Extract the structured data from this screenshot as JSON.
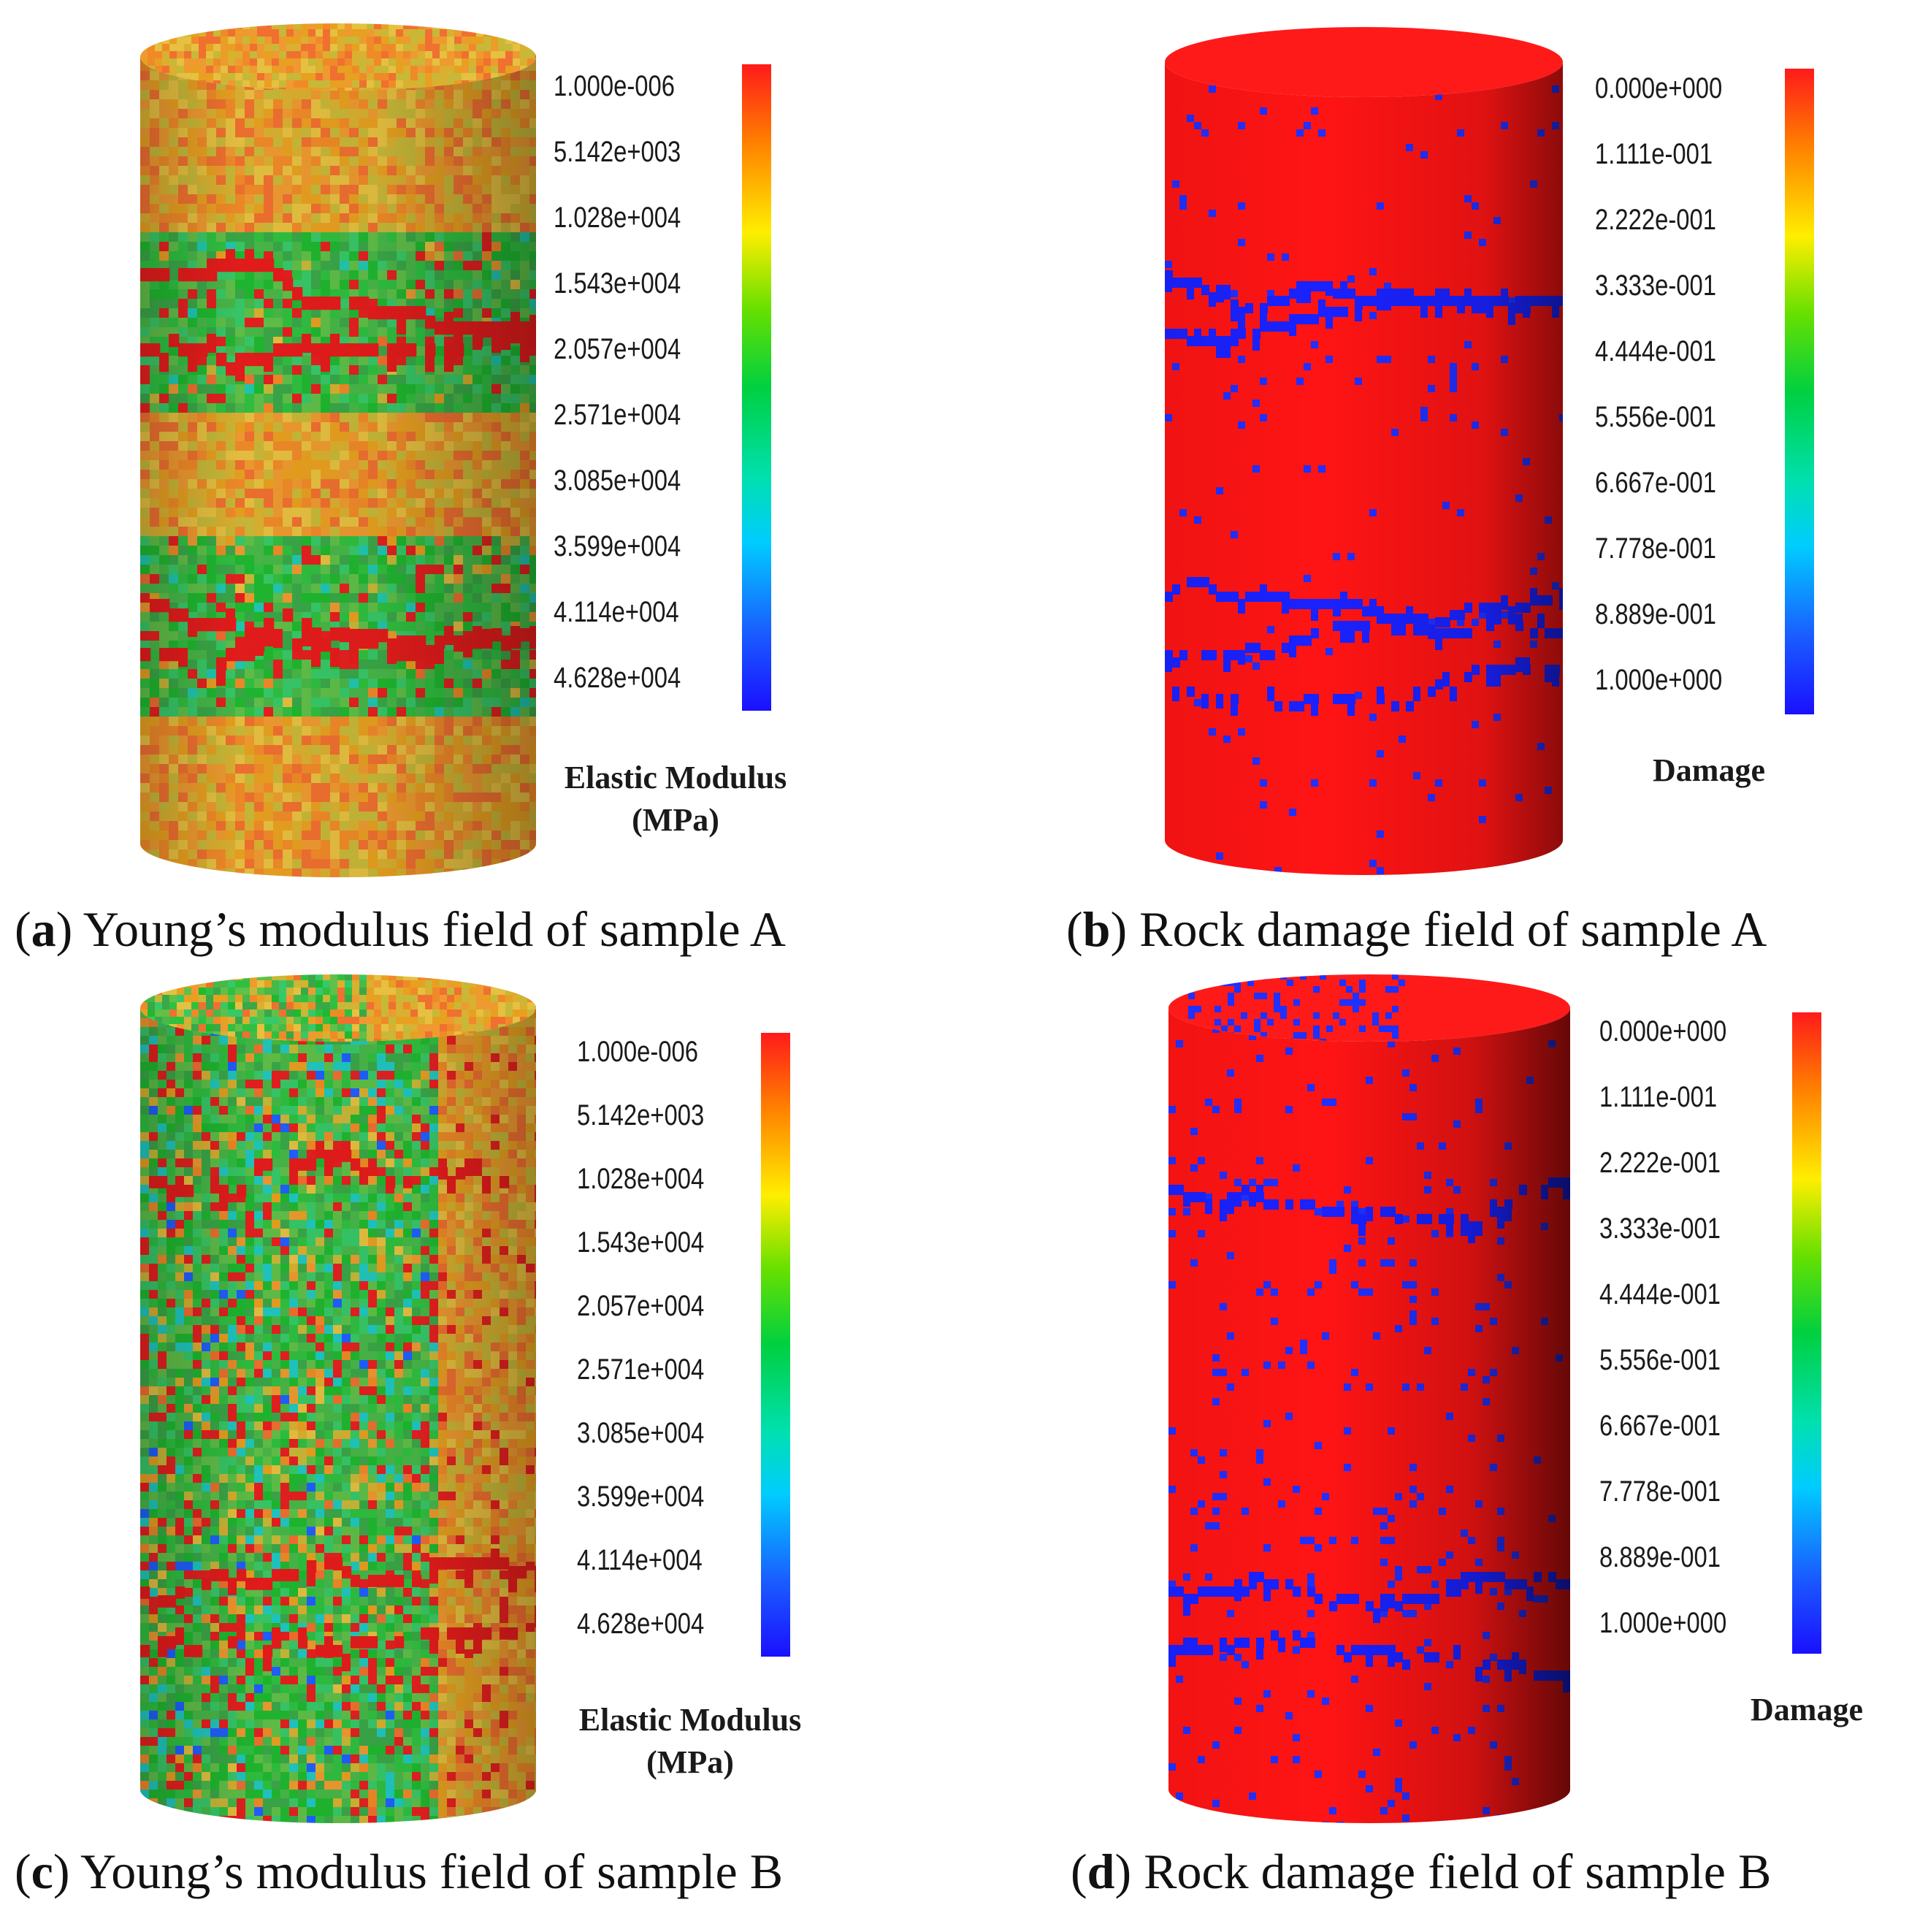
{
  "panels": {
    "a": {
      "letter": "a",
      "caption": "Young’s modulus field of sample A",
      "colorbar_title": "Elastic Modulus",
      "colorbar_unit": "(MPa)",
      "ticks": [
        "1.000e-006",
        "5.142e+003",
        "1.028e+004",
        "1.543e+004",
        "2.057e+004",
        "2.571e+004",
        "3.085e+004",
        "3.599e+004",
        "4.114e+004",
        "4.628e+004"
      ]
    },
    "b": {
      "letter": "b",
      "caption": "Rock damage field of sample A",
      "colorbar_title": "Damage",
      "ticks": [
        "0.000e+000",
        "1.111e-001",
        "2.222e-001",
        "3.333e-001",
        "4.444e-001",
        "5.556e-001",
        "6.667e-001",
        "7.778e-001",
        "8.889e-001",
        "1.000e+000"
      ]
    },
    "c": {
      "letter": "c",
      "caption": "Young’s modulus field of sample B",
      "colorbar_title": "Elastic Modulus",
      "colorbar_unit": "(MPa)",
      "ticks": [
        "1.000e-006",
        "5.142e+003",
        "1.028e+004",
        "1.543e+004",
        "2.057e+004",
        "2.571e+004",
        "3.085e+004",
        "3.599e+004",
        "4.114e+004",
        "4.628e+004"
      ]
    },
    "d": {
      "letter": "d",
      "caption": "Rock damage field of sample B",
      "colorbar_title": "Damage",
      "ticks": [
        "0.000e+000",
        "1.111e-001",
        "2.222e-001",
        "3.333e-001",
        "4.444e-001",
        "5.556e-001",
        "6.667e-001",
        "7.778e-001",
        "8.889e-001",
        "1.000e+000"
      ]
    }
  },
  "colors": {
    "colormap": [
      "#ff1a1a",
      "#ff8000",
      "#ffee00",
      "#66e000",
      "#00d040",
      "#00e0b0",
      "#00ccff",
      "#1a5cff",
      "#1a10ff"
    ],
    "damage_background": "#ff1010",
    "damage_fracture": "#1a1aff"
  }
}
